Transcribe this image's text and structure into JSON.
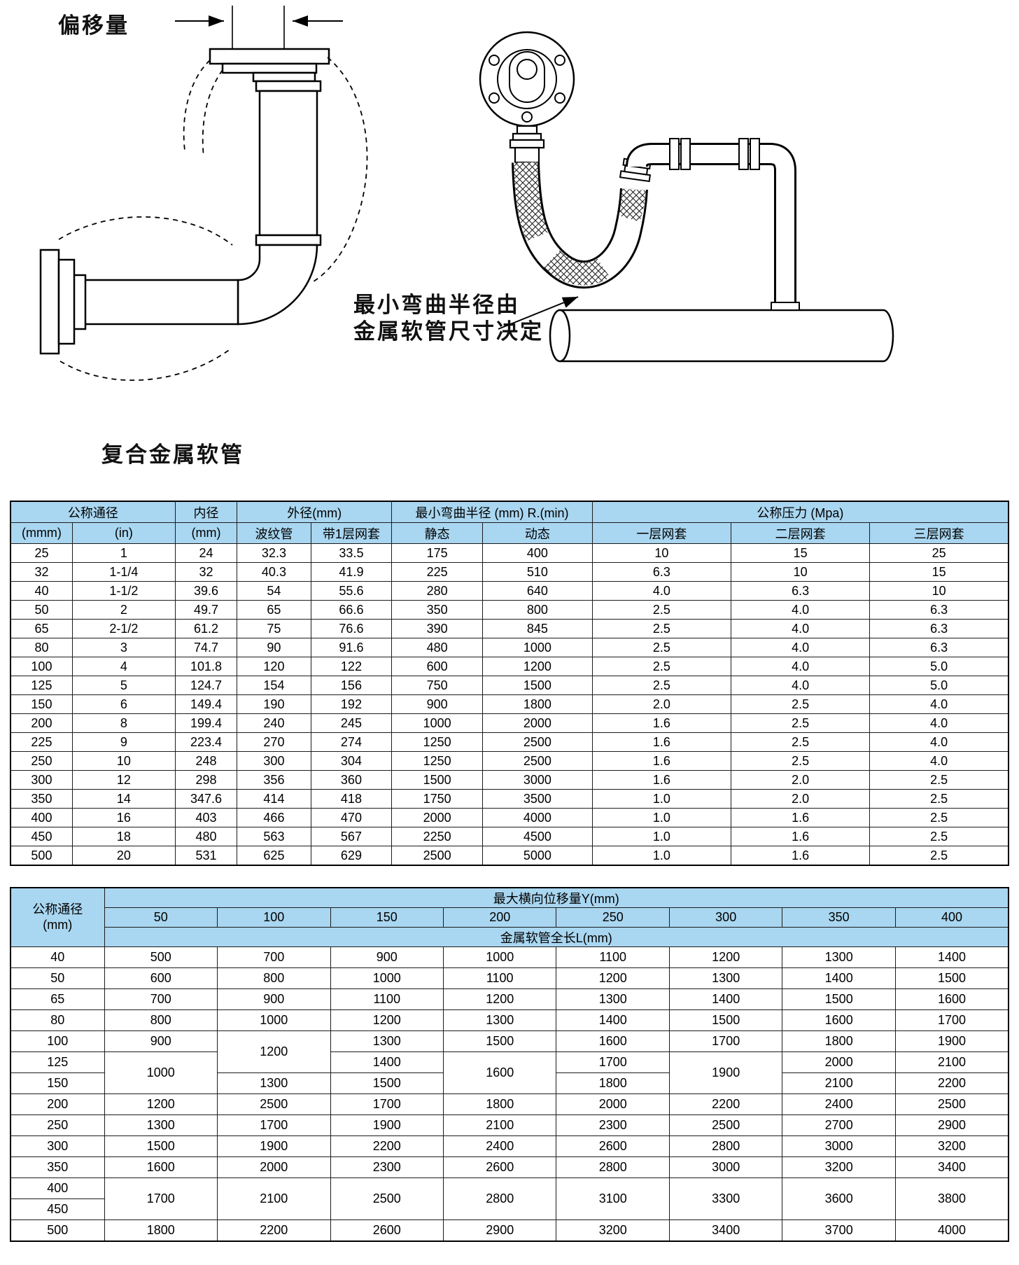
{
  "colors": {
    "table_header_bg": "#a9d6f0",
    "line": "#000000"
  },
  "diagram_left": {
    "offset_label": "偏移量",
    "caption": "复合金属软管"
  },
  "diagram_right": {
    "note_line1": "最小弯曲半径由",
    "note_line2": "金属软管尺寸决定"
  },
  "table1": {
    "groups": [
      {
        "label": "公称通径",
        "span": 2
      },
      {
        "label": "内径",
        "span": 1
      },
      {
        "label": "外径(mm)",
        "span": 2
      },
      {
        "label": "最小弯曲半径 (mm) R.(min)",
        "span": 2
      },
      {
        "label": "公称压力 (Mpa)",
        "span": 3
      }
    ],
    "subheaders": [
      "(mmm)",
      "(in)",
      "(mm)",
      "波纹管",
      "带1层网套",
      "静态",
      "动态",
      "一层网套",
      "二层网套",
      "三层网套"
    ],
    "rows": [
      [
        "25",
        "1",
        "24",
        "32.3",
        "33.5",
        "175",
        "400",
        "10",
        "15",
        "25"
      ],
      [
        "32",
        "1-1/4",
        "32",
        "40.3",
        "41.9",
        "225",
        "510",
        "6.3",
        "10",
        "15"
      ],
      [
        "40",
        "1-1/2",
        "39.6",
        "54",
        "55.6",
        "280",
        "640",
        "4.0",
        "6.3",
        "10"
      ],
      [
        "50",
        "2",
        "49.7",
        "65",
        "66.6",
        "350",
        "800",
        "2.5",
        "4.0",
        "6.3"
      ],
      [
        "65",
        "2-1/2",
        "61.2",
        "75",
        "76.6",
        "390",
        "845",
        "2.5",
        "4.0",
        "6.3"
      ],
      [
        "80",
        "3",
        "74.7",
        "90",
        "91.6",
        "480",
        "1000",
        "2.5",
        "4.0",
        "6.3"
      ],
      [
        "100",
        "4",
        "101.8",
        "120",
        "122",
        "600",
        "1200",
        "2.5",
        "4.0",
        "5.0"
      ],
      [
        "125",
        "5",
        "124.7",
        "154",
        "156",
        "750",
        "1500",
        "2.5",
        "4.0",
        "5.0"
      ],
      [
        "150",
        "6",
        "149.4",
        "190",
        "192",
        "900",
        "1800",
        "2.0",
        "2.5",
        "4.0"
      ],
      [
        "200",
        "8",
        "199.4",
        "240",
        "245",
        "1000",
        "2000",
        "1.6",
        "2.5",
        "4.0"
      ],
      [
        "225",
        "9",
        "223.4",
        "270",
        "274",
        "1250",
        "2500",
        "1.6",
        "2.5",
        "4.0"
      ],
      [
        "250",
        "10",
        "248",
        "300",
        "304",
        "1250",
        "2500",
        "1.6",
        "2.5",
        "4.0"
      ],
      [
        "300",
        "12",
        "298",
        "356",
        "360",
        "1500",
        "3000",
        "1.6",
        "2.0",
        "2.5"
      ],
      [
        "350",
        "14",
        "347.6",
        "414",
        "418",
        "1750",
        "3500",
        "1.0",
        "2.0",
        "2.5"
      ],
      [
        "400",
        "16",
        "403",
        "466",
        "470",
        "2000",
        "4000",
        "1.0",
        "1.6",
        "2.5"
      ],
      [
        "450",
        "18",
        "480",
        "563",
        "567",
        "2250",
        "4500",
        "1.0",
        "1.6",
        "2.5"
      ],
      [
        "500",
        "20",
        "531",
        "625",
        "629",
        "2500",
        "5000",
        "1.0",
        "1.6",
        "2.5"
      ]
    ]
  },
  "table2": {
    "corner": [
      "公称通径",
      "(mm)"
    ],
    "band_top": "最大横向位移量Y(mm)",
    "cols": [
      "50",
      "100",
      "150",
      "200",
      "250",
      "300",
      "350",
      "400"
    ],
    "band_bottom": "金属软管全长L(mm)",
    "rows": [
      {
        "cells": [
          {
            "t": "40"
          },
          {
            "t": "500"
          },
          {
            "t": "700"
          },
          {
            "t": "900"
          },
          {
            "t": "1000"
          },
          {
            "t": "1100"
          },
          {
            "t": "1200"
          },
          {
            "t": "1300"
          },
          {
            "t": "1400"
          }
        ]
      },
      {
        "cells": [
          {
            "t": "50"
          },
          {
            "t": "600"
          },
          {
            "t": "800"
          },
          {
            "t": "1000"
          },
          {
            "t": "1100"
          },
          {
            "t": "1200"
          },
          {
            "t": "1300"
          },
          {
            "t": "1400"
          },
          {
            "t": "1500"
          }
        ]
      },
      {
        "cells": [
          {
            "t": "65"
          },
          {
            "t": "700"
          },
          {
            "t": "900"
          },
          {
            "t": "1100"
          },
          {
            "t": "1200"
          },
          {
            "t": "1300"
          },
          {
            "t": "1400"
          },
          {
            "t": "1500"
          },
          {
            "t": "1600"
          }
        ]
      },
      {
        "cells": [
          {
            "t": "80"
          },
          {
            "t": "800"
          },
          {
            "t": "1000"
          },
          {
            "t": "1200"
          },
          {
            "t": "1300"
          },
          {
            "t": "1400"
          },
          {
            "t": "1500"
          },
          {
            "t": "1600"
          },
          {
            "t": "1700"
          }
        ]
      },
      {
        "cells": [
          {
            "t": "100"
          },
          {
            "t": "900"
          },
          {
            "t": "1200",
            "rs": 2
          },
          {
            "t": "1300"
          },
          {
            "t": "1500"
          },
          {
            "t": "1600"
          },
          {
            "t": "1700"
          },
          {
            "t": "1800"
          },
          {
            "t": "1900"
          }
        ]
      },
      {
        "cells": [
          {
            "t": "125"
          },
          {
            "t": "1000",
            "rs": 2
          },
          {
            "t": "1400"
          },
          {
            "t": "1600",
            "rs": 2
          },
          {
            "t": "1700"
          },
          {
            "t": "1900",
            "rs": 2
          },
          {
            "t": "2000"
          },
          {
            "t": "2100"
          }
        ]
      },
      {
        "cells": [
          {
            "t": "150"
          },
          {
            "t": "1300"
          },
          {
            "t": "1500"
          },
          {
            "t": "1800"
          },
          {
            "t": "2100"
          },
          {
            "t": "2200"
          }
        ]
      },
      {
        "cells": [
          {
            "t": "200"
          },
          {
            "t": "1200"
          },
          {
            "t": "2500"
          },
          {
            "t": "1700"
          },
          {
            "t": "1800"
          },
          {
            "t": "2000"
          },
          {
            "t": "2200"
          },
          {
            "t": "2400"
          },
          {
            "t": "2500"
          }
        ]
      },
      {
        "cells": [
          {
            "t": "250"
          },
          {
            "t": "1300"
          },
          {
            "t": "1700"
          },
          {
            "t": "1900"
          },
          {
            "t": "2100"
          },
          {
            "t": "2300"
          },
          {
            "t": "2500"
          },
          {
            "t": "2700"
          },
          {
            "t": "2900"
          }
        ]
      },
      {
        "cells": [
          {
            "t": "300"
          },
          {
            "t": "1500"
          },
          {
            "t": "1900"
          },
          {
            "t": "2200"
          },
          {
            "t": "2400"
          },
          {
            "t": "2600"
          },
          {
            "t": "2800"
          },
          {
            "t": "3000"
          },
          {
            "t": "3200"
          }
        ]
      },
      {
        "cells": [
          {
            "t": "350"
          },
          {
            "t": "1600"
          },
          {
            "t": "2000"
          },
          {
            "t": "2300"
          },
          {
            "t": "2600"
          },
          {
            "t": "2800"
          },
          {
            "t": "3000"
          },
          {
            "t": "3200"
          },
          {
            "t": "3400"
          }
        ]
      },
      {
        "cells": [
          {
            "t": "400"
          },
          {
            "t": "1700",
            "rs": 2
          },
          {
            "t": "2100",
            "rs": 2
          },
          {
            "t": "2500",
            "rs": 2
          },
          {
            "t": "2800",
            "rs": 2
          },
          {
            "t": "3100",
            "rs": 2
          },
          {
            "t": "3300",
            "rs": 2
          },
          {
            "t": "3600",
            "rs": 2
          },
          {
            "t": "3800",
            "rs": 2
          }
        ]
      },
      {
        "cells": [
          {
            "t": "450"
          }
        ]
      },
      {
        "cells": [
          {
            "t": "500"
          },
          {
            "t": "1800"
          },
          {
            "t": "2200"
          },
          {
            "t": "2600"
          },
          {
            "t": "2900"
          },
          {
            "t": "3200"
          },
          {
            "t": "3400"
          },
          {
            "t": "3700"
          },
          {
            "t": "4000"
          }
        ]
      }
    ]
  }
}
